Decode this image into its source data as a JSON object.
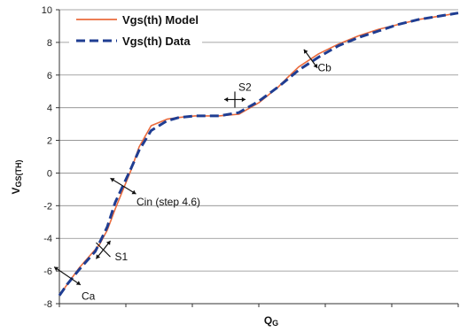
{
  "chart_data": {
    "type": "line",
    "xlabel": "Q_G",
    "xlabel_main": "Q",
    "xlabel_sub": "G",
    "ylabel": "V_GS(TH)",
    "ylabel_main": "V",
    "ylabel_sub": "GS(TH)",
    "ylim": [
      -8,
      10
    ],
    "yticks": [
      -8,
      -6,
      -4,
      -2,
      0,
      2,
      4,
      6,
      8,
      10
    ],
    "ytick_labels": [
      "-8",
      "-6",
      "-4",
      "-2",
      "0",
      "2",
      "4",
      "6",
      "8",
      "10"
    ],
    "xlim": [
      0,
      100
    ],
    "x_tick_count": 6,
    "grid": true,
    "legend_position": "top-left",
    "series": [
      {
        "name": "Vgs(th) Model",
        "color": "#ea6b3d",
        "style": "solid",
        "x": [
          0,
          2,
          5,
          10,
          12,
          14,
          18,
          20,
          23,
          27,
          30,
          34,
          40,
          45,
          50,
          55,
          57,
          60,
          65,
          70,
          75,
          80,
          85,
          90,
          95,
          100
        ],
        "y": [
          -7.5,
          -6.8,
          -5.8,
          -4.4,
          -3.5,
          -2.2,
          0.2,
          1.6,
          2.9,
          3.3,
          3.4,
          3.5,
          3.5,
          3.6,
          4.3,
          5.3,
          5.8,
          6.5,
          7.3,
          7.9,
          8.4,
          8.8,
          9.1,
          9.4,
          9.6,
          9.8
        ]
      },
      {
        "name": "Vgs(th) Data",
        "color": "#1f3d92",
        "style": "dashed",
        "x": [
          0,
          2,
          5,
          9,
          12,
          14,
          18,
          20,
          23,
          27,
          30,
          34,
          40,
          45,
          50,
          55,
          57,
          60,
          65,
          70,
          75,
          80,
          85,
          90,
          95,
          100
        ],
        "y": [
          -7.5,
          -6.8,
          -5.9,
          -4.8,
          -3.3,
          -1.8,
          0.3,
          1.4,
          2.6,
          3.2,
          3.4,
          3.5,
          3.5,
          3.7,
          4.4,
          5.3,
          5.7,
          6.3,
          7.1,
          7.8,
          8.3,
          8.7,
          9.1,
          9.4,
          9.6,
          9.8
        ]
      }
    ],
    "annotations": [
      {
        "label": "Cb",
        "arrow": "double",
        "x": 63,
        "y": 7.0
      },
      {
        "label": "S2",
        "arrow": "cross",
        "x": 44,
        "y": 4.5
      },
      {
        "label": "Cin (step 4.6)",
        "arrow": "double",
        "x": 16,
        "y": -0.8
      },
      {
        "label": "S1",
        "arrow": "cross",
        "x": 11,
        "y": -4.7
      },
      {
        "label": "Ca",
        "arrow": "double",
        "x": 2,
        "y": -6.3
      }
    ]
  }
}
